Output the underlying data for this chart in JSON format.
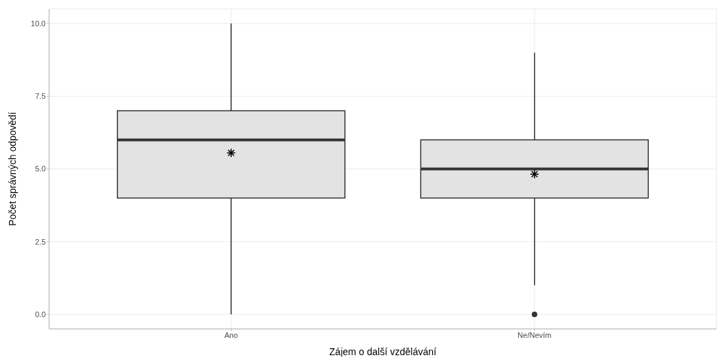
{
  "chart_data": {
    "type": "box",
    "xlabel": "Zájem o další vzdělávání",
    "ylabel": "Počet správných odpovědí",
    "categories": [
      "Ano",
      "Ne/Nevím"
    ],
    "color": "#e3e3e3",
    "boxes": [
      {
        "low": 0,
        "q1": 4,
        "median": 6,
        "q3": 7,
        "high": 10,
        "mean": 5.55
      },
      {
        "low": 1,
        "q1": 4,
        "median": 5,
        "q3": 6,
        "high": 9,
        "mean": 4.82,
        "outliers": [
          0
        ]
      }
    ],
    "ylim": [
      -0.5,
      10.5
    ],
    "yticks": [
      {
        "value": 0,
        "label": "0.0"
      },
      {
        "value": 2.5,
        "label": "2.5"
      },
      {
        "value": 5,
        "label": "5.0"
      },
      {
        "value": 7.5,
        "label": "7.5"
      },
      {
        "value": 10,
        "label": "10.0"
      }
    ],
    "grid": true
  }
}
